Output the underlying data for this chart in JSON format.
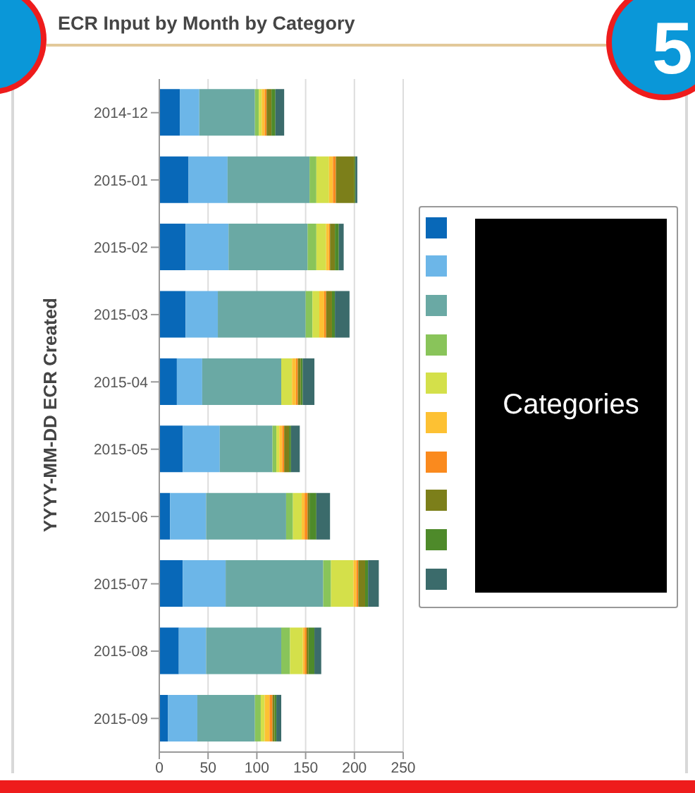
{
  "chart_data": {
    "type": "bar",
    "orientation": "horizontal",
    "stacked": true,
    "title": "ECR Input by Month by Category",
    "ylabel": "YYYY-MM-DD ECR Created",
    "legend_title": "Categories",
    "annotations": [
      "5"
    ],
    "categories": [
      "2014-12",
      "2015-01",
      "2015-02",
      "2015-03",
      "2015-04",
      "2015-05",
      "2015-06",
      "2015-07",
      "2015-08",
      "2015-09"
    ],
    "series": [
      {
        "color": "#0868b8",
        "values": [
          21,
          30,
          27,
          27,
          18,
          24,
          11,
          24,
          20,
          9
        ]
      },
      {
        "color": "#6cb6e8",
        "values": [
          20,
          40,
          44,
          33,
          26,
          38,
          37,
          44,
          28,
          30
        ]
      },
      {
        "color": "#6aa9a4",
        "values": [
          57,
          84,
          81,
          90,
          81,
          54,
          82,
          100,
          77,
          59
        ]
      },
      {
        "color": "#89c45a",
        "values": [
          4,
          7,
          9,
          7,
          0,
          4,
          7,
          8,
          9,
          6
        ]
      },
      {
        "color": "#d4e04a",
        "values": [
          3,
          13,
          10,
          7,
          11,
          3,
          9,
          23,
          13,
          4
        ]
      },
      {
        "color": "#fdc133",
        "values": [
          3,
          4,
          3,
          5,
          4,
          3,
          3,
          3,
          2,
          5
        ]
      },
      {
        "color": "#fa8a1e",
        "values": [
          2,
          3,
          1,
          2,
          2,
          2,
          3,
          2,
          2,
          3
        ]
      },
      {
        "color": "#7c7f1a",
        "values": [
          5,
          19,
          5,
          6,
          3,
          5,
          2,
          7,
          2,
          2
        ]
      },
      {
        "color": "#4e8a2a",
        "values": [
          4,
          1,
          4,
          3,
          2,
          2,
          7,
          3,
          6,
          2
        ]
      },
      {
        "color": "#3b6b6b",
        "values": [
          9,
          2,
          5,
          15,
          12,
          9,
          14,
          11,
          7,
          5
        ]
      }
    ],
    "xlim": [
      0,
      250
    ],
    "xticks": [
      0,
      50,
      100,
      150,
      200,
      250
    ],
    "grid": "x"
  }
}
